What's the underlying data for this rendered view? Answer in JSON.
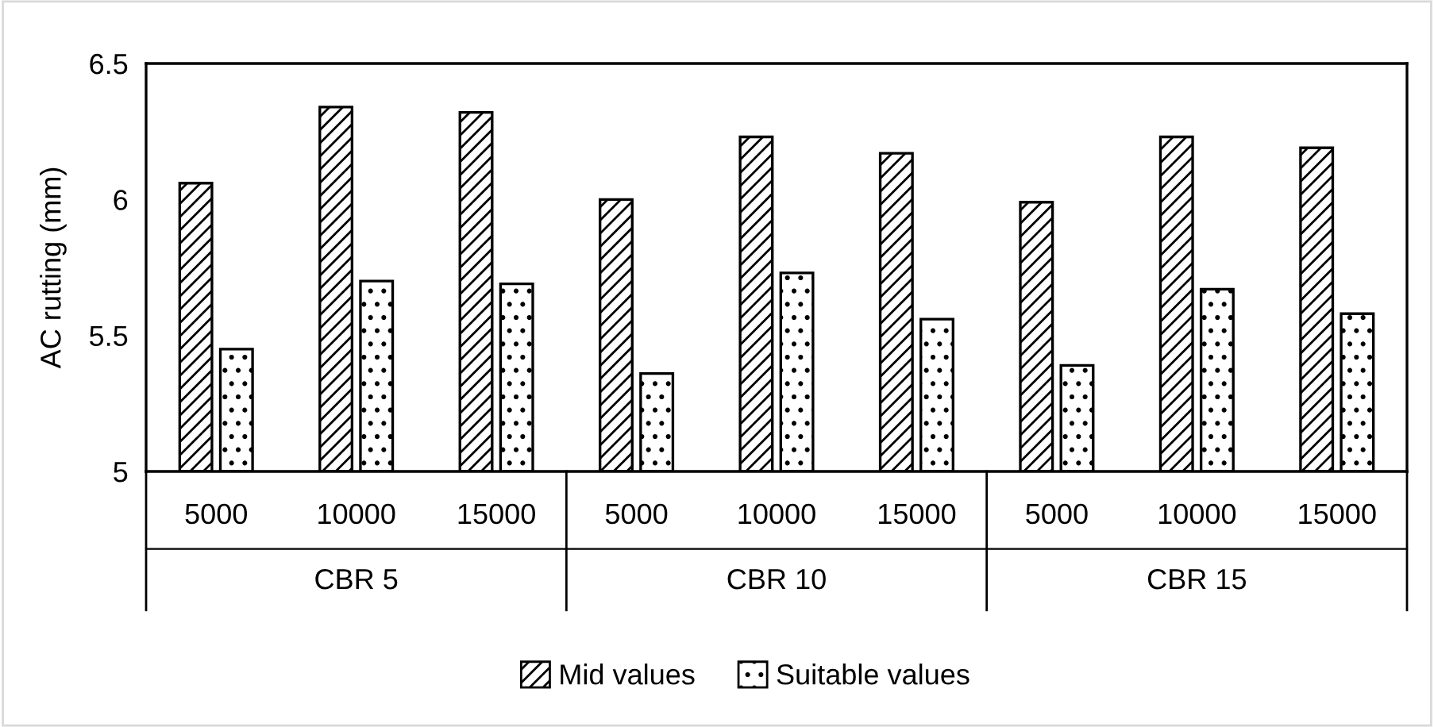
{
  "chart_data": {
    "type": "bar",
    "ylabel": "AC rutting (mm)",
    "categories": [
      "5000",
      "10000",
      "15000",
      "5000",
      "10000",
      "15000",
      "5000",
      "10000",
      "15000"
    ],
    "annotations": [
      "CBR 5",
      "CBR 10",
      "CBR 15"
    ],
    "series": [
      {
        "name": "Mid values",
        "color": "#000000",
        "values": [
          6.06,
          6.34,
          6.32,
          6.0,
          6.23,
          6.17,
          5.99,
          6.23,
          6.19
        ]
      },
      {
        "name": "Suitable values",
        "color": "#000000",
        "values": [
          5.45,
          5.7,
          5.69,
          5.36,
          5.73,
          5.56,
          5.39,
          5.67,
          5.58
        ]
      }
    ],
    "ylim": [
      5,
      6.5
    ],
    "yticks": [
      5,
      5.5,
      6,
      6.5
    ],
    "grid": false,
    "legend": "bottom"
  }
}
